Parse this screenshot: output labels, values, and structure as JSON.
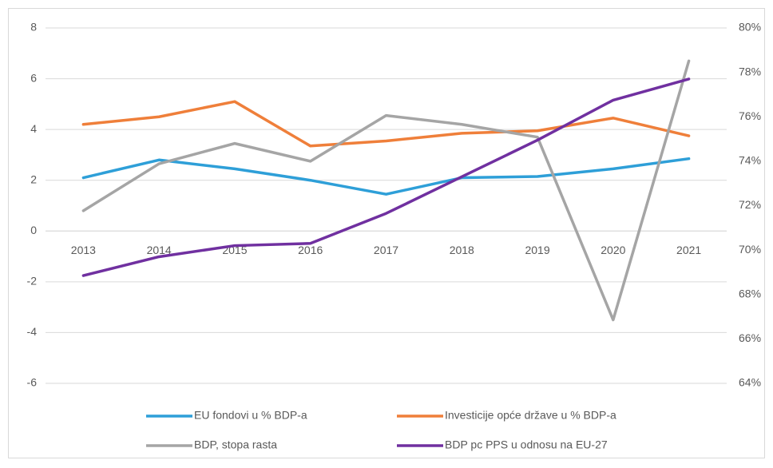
{
  "chart_data": {
    "type": "line",
    "categories": [
      "2013",
      "2014",
      "2015",
      "2016",
      "2017",
      "2018",
      "2019",
      "2020",
      "2021"
    ],
    "series": [
      {
        "name": "EU fondovi u % BDP-a",
        "color": "#2e9fd8",
        "values": [
          2.1,
          2.8,
          2.45,
          2.0,
          1.45,
          2.1,
          2.15,
          2.45,
          2.85
        ]
      },
      {
        "name": "Investicije opće države u % BDP-a",
        "color": "#ef7f3a",
        "values": [
          4.2,
          4.5,
          5.1,
          3.35,
          3.55,
          3.85,
          3.95,
          4.45,
          3.75
        ]
      },
      {
        "name": "BDP, stopa rasta",
        "color": "#a5a5a5",
        "values": [
          0.8,
          2.65,
          3.45,
          2.75,
          4.55,
          4.2,
          3.7,
          -3.5,
          6.7
        ]
      },
      {
        "name": "BDP pc PPS u odnosu na EU-27",
        "color": "#7030a0",
        "axis": "y2",
        "values": [
          68.85,
          69.7,
          70.2,
          70.3,
          71.65,
          73.3,
          74.95,
          76.75,
          77.7
        ]
      }
    ],
    "ylim": [
      -6,
      8
    ],
    "yticks": [
      -6,
      -4,
      -2,
      0,
      2,
      4,
      6,
      8
    ],
    "y2lim": [
      64,
      80
    ],
    "y2ticks": [
      {
        "value": 64,
        "label": "64%"
      },
      {
        "value": 66,
        "label": "66%"
      },
      {
        "value": 68,
        "label": "68%"
      },
      {
        "value": 70,
        "label": "70%"
      },
      {
        "value": 72,
        "label": "72%"
      },
      {
        "value": 74,
        "label": "74%"
      },
      {
        "value": 76,
        "label": "76%"
      },
      {
        "value": 78,
        "label": "78%"
      },
      {
        "value": 80,
        "label": "80%"
      }
    ],
    "grid": true,
    "legend": "bottom"
  }
}
